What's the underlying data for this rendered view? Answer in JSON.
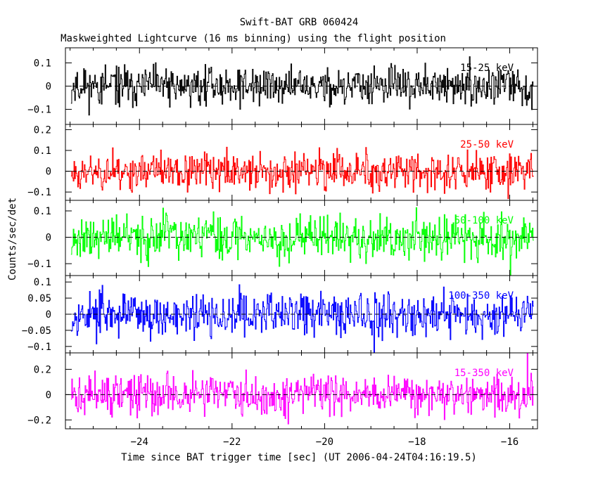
{
  "title": "Swift-BAT GRB 060424",
  "subtitle": "Maskweighted Lightcurve (16 ms binning) using the flight position",
  "chart_data": [
    {
      "type": "line",
      "band": "15-25 keV",
      "color": "#000000",
      "xlim": [
        -25.6,
        -15.4
      ],
      "ylim": [
        -0.165,
        0.165
      ],
      "yticks": [
        {
          "v": 0.1,
          "label": "0.1"
        },
        {
          "v": 0,
          "label": "0"
        },
        {
          "v": -0.1,
          "label": "−0.1"
        }
      ],
      "noise_amp": 0.055,
      "seed": 11
    },
    {
      "type": "line",
      "band": "25-50 keV",
      "color": "#ff0000",
      "xlim": [
        -25.6,
        -15.4
      ],
      "ylim": [
        -0.14,
        0.225
      ],
      "yticks": [
        {
          "v": 0.2,
          "label": "0.2"
        },
        {
          "v": 0.1,
          "label": "0.1"
        },
        {
          "v": 0,
          "label": "0"
        },
        {
          "v": -0.1,
          "label": "−0.1"
        }
      ],
      "noise_amp": 0.06,
      "seed": 23
    },
    {
      "type": "line",
      "band": "50-100 keV",
      "color": "#00ff00",
      "xlim": [
        -25.6,
        -15.4
      ],
      "ylim": [
        -0.145,
        0.14
      ],
      "yticks": [
        {
          "v": 0.1,
          "label": "0.1"
        },
        {
          "v": 0,
          "label": "0"
        },
        {
          "v": -0.1,
          "label": "−0.1"
        }
      ],
      "noise_amp": 0.055,
      "seed": 37
    },
    {
      "type": "line",
      "band": "100-350 keV",
      "color": "#0000ff",
      "xlim": [
        -25.6,
        -15.4
      ],
      "ylim": [
        -0.12,
        0.12
      ],
      "yticks": [
        {
          "v": 0.1,
          "label": "0.1"
        },
        {
          "v": 0.05,
          "label": "0.05"
        },
        {
          "v": 0,
          "label": "0"
        },
        {
          "v": -0.05,
          "label": "−0.05"
        },
        {
          "v": -0.1,
          "label": "−0.1"
        }
      ],
      "noise_amp": 0.045,
      "seed": 53
    },
    {
      "type": "line",
      "band": "15-350 keV",
      "color": "#ff00ff",
      "xlim": [
        -25.6,
        -15.4
      ],
      "ylim": [
        -0.27,
        0.33
      ],
      "yticks": [
        {
          "v": 0.2,
          "label": "0.2"
        },
        {
          "v": 0,
          "label": "0"
        },
        {
          "v": -0.2,
          "label": "−0.2"
        }
      ],
      "noise_amp": 0.1,
      "seed": 71
    }
  ],
  "xticks": [
    {
      "v": -24,
      "label": "−24"
    },
    {
      "v": -22,
      "label": "−22"
    },
    {
      "v": -20,
      "label": "−20"
    },
    {
      "v": -18,
      "label": "−18"
    },
    {
      "v": -16,
      "label": "−16"
    }
  ],
  "xlabel": "Time since BAT trigger time [sec] (UT 2006-04-24T04:16:19.5)",
  "ylabel": "Counts/sec/det",
  "bin_sec": 0.016
}
